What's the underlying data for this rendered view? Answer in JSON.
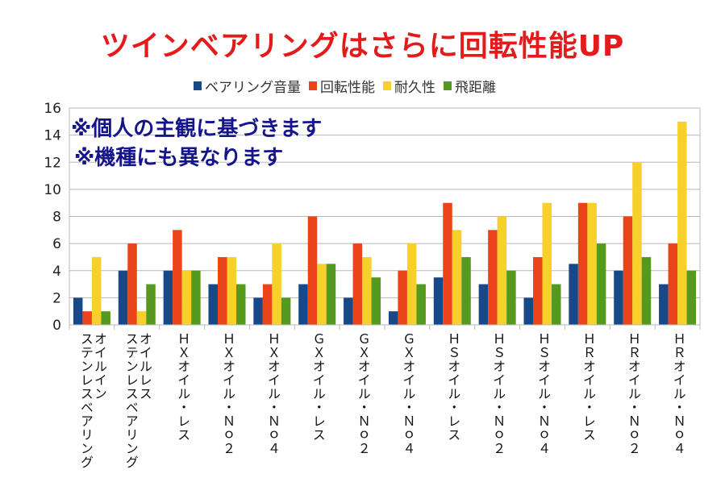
{
  "chart_data": {
    "type": "bar",
    "title": "ツインベアリングはさらに回転性能UP",
    "annotations": [
      "※個人の主観に基づきます",
      "※機種にも異なります"
    ],
    "xlabel": "",
    "ylabel": "",
    "ylim": [
      0,
      16
    ],
    "yticks": [
      0,
      2,
      4,
      6,
      8,
      10,
      12,
      14,
      16
    ],
    "grid": true,
    "legend_position": "top",
    "categories": [
      "オイルイン\nステンレスベアリング",
      "オイルレス\nステンレスベアリング",
      "ＨＸオイル・レス",
      "ＨＸオイル・Ｎｏ２",
      "ＨＸオイル・Ｎｏ４",
      "ＧＸオイル・レス",
      "ＧＸオイル・Ｎｏ２",
      "ＧＸオイル・Ｎｏ４",
      "ＨＳオイル・レス",
      "ＨＳオイル・Ｎｏ２",
      "ＨＳオイル・Ｎｏ４",
      "ＨＲオイル・レス",
      "ＨＲオイル・Ｎｏ２",
      "ＨＲオイル・Ｎｏ４"
    ],
    "series": [
      {
        "name": "ベアリング音量",
        "color": "#17488a",
        "values": [
          2,
          4,
          4,
          3,
          2,
          3,
          2,
          1,
          3.5,
          3,
          2,
          4.5,
          4,
          3
        ]
      },
      {
        "name": "回転性能",
        "color": "#ea4418",
        "values": [
          1,
          6,
          7,
          5,
          3,
          8,
          6,
          4,
          9,
          7,
          5,
          9,
          8,
          6
        ]
      },
      {
        "name": "耐久性",
        "color": "#f7d02a",
        "values": [
          5,
          1,
          4,
          5,
          6,
          4.5,
          5,
          6,
          7,
          8,
          9,
          9,
          12,
          15
        ]
      },
      {
        "name": "飛距離",
        "color": "#559a1f",
        "values": [
          1,
          3,
          4,
          3,
          2,
          4.5,
          3.5,
          3,
          5,
          4,
          3,
          6,
          5,
          4
        ]
      }
    ]
  }
}
